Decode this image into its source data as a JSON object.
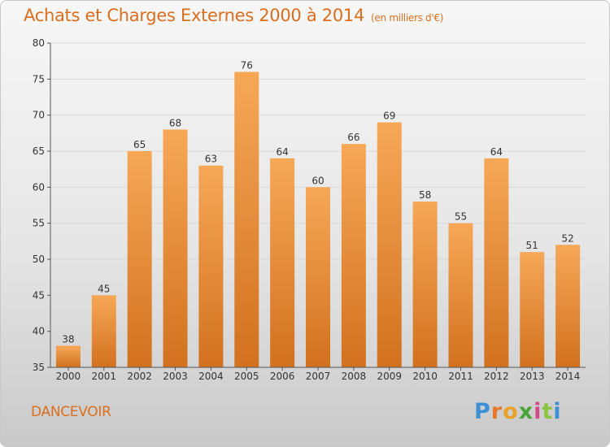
{
  "header": {
    "title": "Achats et Charges Externes 2000 à 2014",
    "subtitle": "(en milliers d'€)"
  },
  "footer": {
    "commune": "DANCEVOIR",
    "logo_text": "Proxiti",
    "logo_colors": [
      "#3d8fd6",
      "#e8782a",
      "#e8a22a",
      "#4aa33a",
      "#d44a8a",
      "#8cc63f",
      "#3d8fd6"
    ]
  },
  "colors": {
    "bar_light": "#f6a857",
    "bar_dark": "#d2711f",
    "axis": "#555555",
    "grid": "#d8d8d8",
    "label": "#333333"
  },
  "chart_data": {
    "type": "bar",
    "title": "Achats et Charges Externes 2000 à 2014",
    "subtitle": "(en milliers d'€)",
    "categories": [
      "2000",
      "2001",
      "2002",
      "2003",
      "2004",
      "2005",
      "2006",
      "2007",
      "2008",
      "2009",
      "2010",
      "2011",
      "2012",
      "2013",
      "2014"
    ],
    "values": [
      38,
      45,
      65,
      68,
      63,
      76,
      64,
      60,
      66,
      69,
      58,
      55,
      64,
      51,
      52
    ],
    "ylim": [
      35,
      80
    ],
    "yticks": [
      35,
      40,
      45,
      50,
      55,
      60,
      65,
      70,
      75,
      80
    ],
    "grid": true
  }
}
